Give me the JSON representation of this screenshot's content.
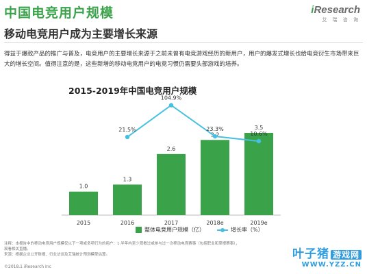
{
  "header": {
    "title": "中国电竞用户规模",
    "subtitle": "移动电竞用户成为主要增长来源",
    "logo_main_i": "i",
    "logo_main_rest": "Research",
    "logo_sub": "艾 瑞 咨 询"
  },
  "description": "得益于爆款产品的推广与普及，电竞用户的主要增长来源于之前未曾有电竞游戏经历的新用户，用户的爆发式增长也给电竞衍生市场带来巨大的增长空间。值得注意的是，这些新增的移动电竞用户的电竞习惯仍需要头部游戏的培养。",
  "chart_data": {
    "type": "bar",
    "title": "2015-2019年中国电竞用户规模",
    "categories": [
      "2015",
      "2016",
      "2017",
      "2018e",
      "2019e"
    ],
    "series": [
      {
        "name": "整体电竞用户规模（亿）",
        "type": "bar",
        "values": [
          1.0,
          1.3,
          2.6,
          3.2,
          3.5
        ],
        "labels": [
          "1.0",
          "1.3",
          "2.6",
          "3.2",
          "3.5"
        ]
      },
      {
        "name": "增长率（%）",
        "type": "line",
        "values": [
          null,
          21.5,
          104.9,
          23.3,
          10.6
        ],
        "labels": [
          "",
          "21.5%",
          "104.9%",
          "23.3%",
          "10.6%"
        ]
      }
    ],
    "bar_ylim": [
      0,
      4.2
    ],
    "line_ylim": [
      0,
      115
    ],
    "colors": {
      "bar": "#3aa34a",
      "line": "#45c0e0"
    },
    "grid": false,
    "legend_position": "bottom"
  },
  "notes": {
    "line1": "注释：本报告中的移动电竞用户规模仅以下一项或多项行为的用户：1.半年内至少观看过或参与过一次移动电竞赛事（包括职业和草根赛事），",
    "line2": "观看相关直播。",
    "line3": "来源：根据企业公开财报、行业访谈及艾瑞统计预测模型估算。",
    "copyright": "©2018.1 iResearch Inc"
  },
  "watermark": {
    "main": "叶子猪",
    "game": "游戏网",
    "url": "WWW.YZZ.CN"
  }
}
